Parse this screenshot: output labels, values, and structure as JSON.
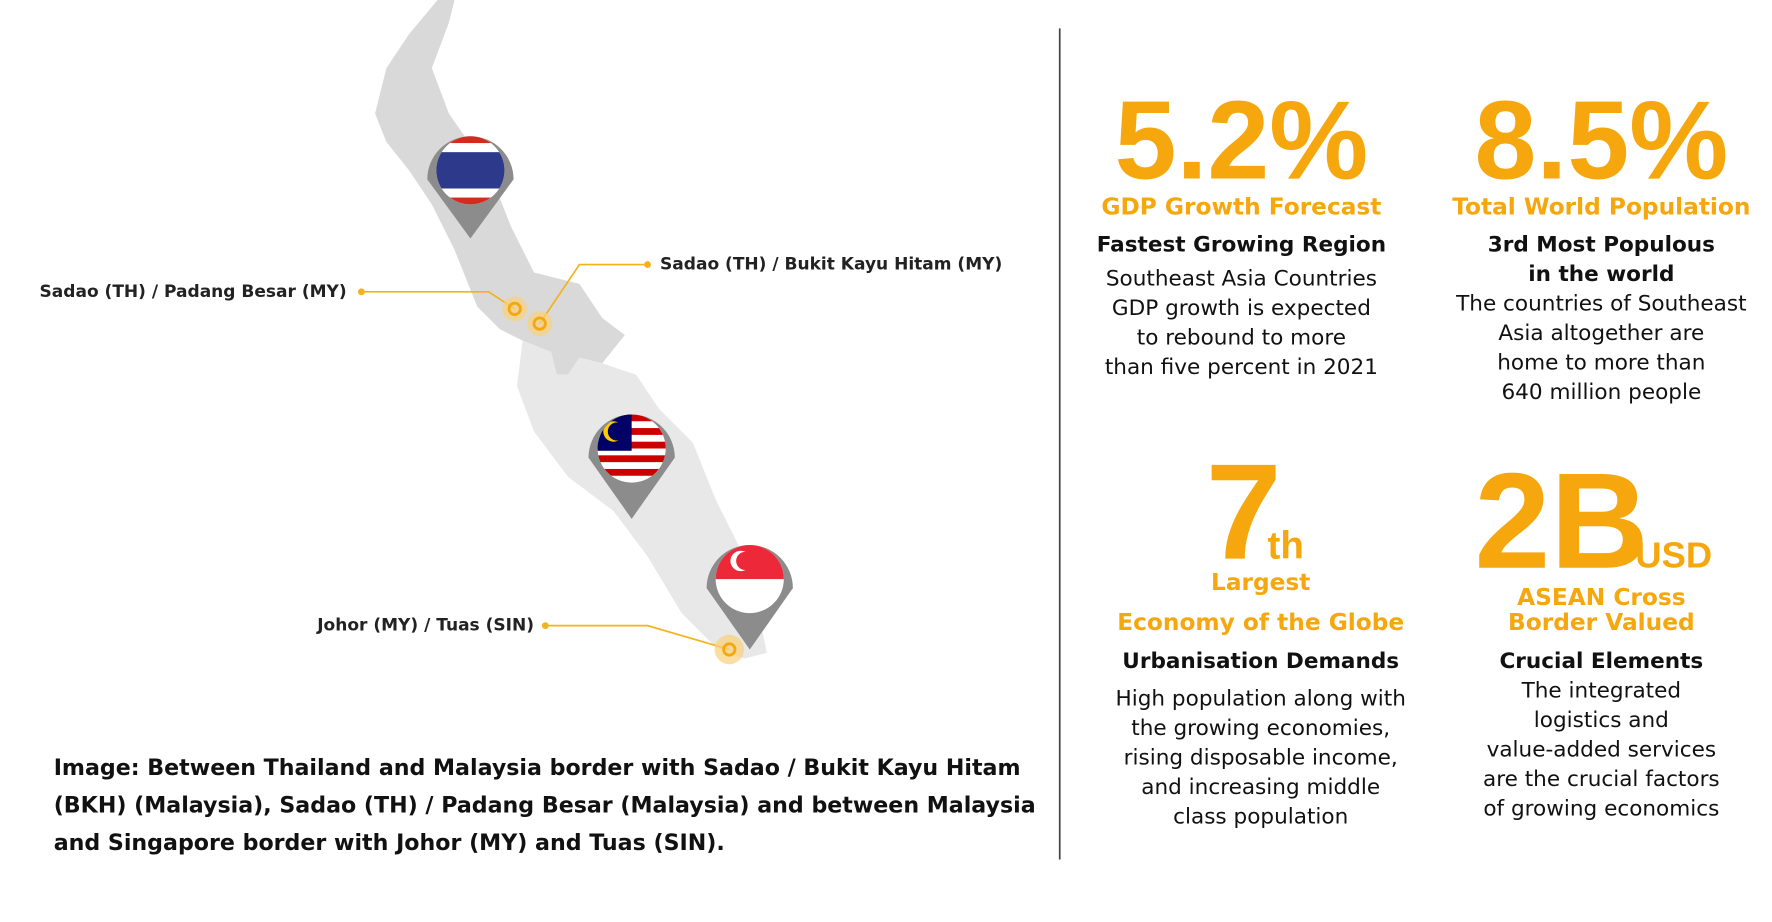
{
  "map": {
    "labels": [
      "Sadao (TH) / Padang Besar (MY)",
      "Sadao (TH) / Bukit Kayu Hitam (MY)",
      "Johor (MY) / Tuas (SIN)"
    ]
  },
  "caption": [
    "Image: Between Thailand and Malaysia border with Sadao / Bukit Kayu Hitam",
    "(BKH)  (Malaysia), Sadao (TH) / Padang Besar (Malaysia) and between Malaysia",
    "and Singapore border with Johor (MY) and Tuas (SIN)."
  ],
  "stats": [
    {
      "figure": "5.2%",
      "label": [
        "GDP Growth Forecast"
      ],
      "heading": [
        "Fastest Growing Region"
      ],
      "body": [
        "Southeast Asia Countries",
        "GDP growth is expected",
        "to rebound to more",
        "than five percent in 2021"
      ]
    },
    {
      "figure": "8.5%",
      "label": [
        "Total World Population"
      ],
      "heading": [
        "3rd Most Populous",
        "in the world"
      ],
      "body": [
        "The countries of Southeast",
        "Asia altogether are",
        "home to more than",
        "640 million people"
      ]
    },
    {
      "figure": "7",
      "suffix": "th",
      "label": [
        "Largest",
        "Economy of the Globe"
      ],
      "heading": [
        "Urbanisation Demands"
      ],
      "body": [
        "High population along with",
        "the growing economies,",
        "rising disposable income,",
        "and increasing middle",
        "class population"
      ]
    },
    {
      "figure": "2B",
      "suffix": "USD",
      "label": [
        "ASEAN Cross",
        "Border Valued"
      ],
      "heading": [
        "Crucial Elements"
      ],
      "body": [
        "The integrated",
        "logistics and",
        "value-added services",
        "are the crucial factors",
        "of growing economics"
      ]
    }
  ]
}
